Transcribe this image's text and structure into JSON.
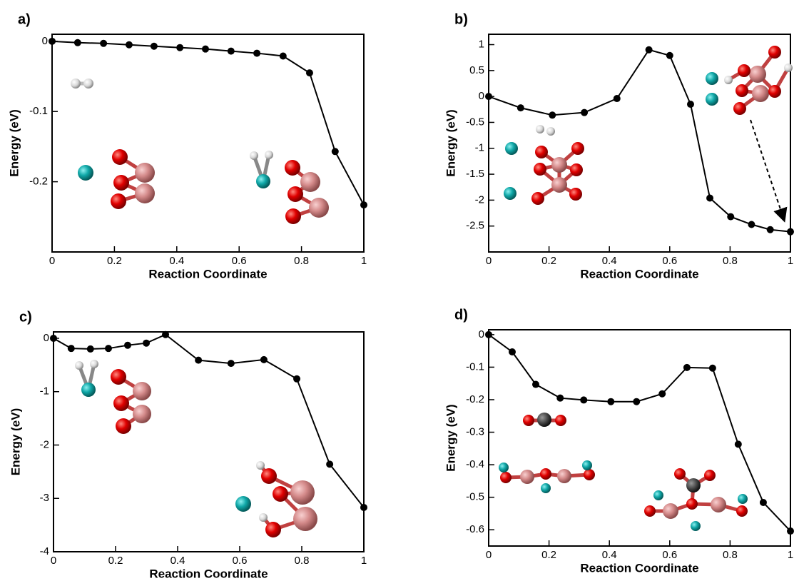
{
  "chart_data": [
    {
      "type": "line",
      "panel_label": "a)",
      "xlabel": "Reaction Coordinate",
      "ylabel": "Energy (eV)",
      "color": "#000000",
      "x": [
        0,
        0.082,
        0.165,
        0.247,
        0.327,
        0.41,
        0.492,
        0.574,
        0.657,
        0.741,
        0.826,
        0.908,
        1
      ],
      "values": [
        0,
        -0.002,
        -0.003,
        -0.005,
        -0.007,
        -0.009,
        -0.011,
        -0.014,
        -0.017,
        -0.021,
        -0.045,
        -0.157,
        -0.233
      ],
      "xlim": [
        0,
        1
      ],
      "xticks": [
        0,
        0.2,
        0.4,
        0.6,
        0.8,
        1
      ],
      "ylim": [
        -0.3,
        0.01
      ],
      "yticks": [
        0,
        -0.1,
        -0.2
      ]
    },
    {
      "type": "line",
      "panel_label": "b)",
      "xlabel": "Reaction Coordinate",
      "ylabel": "Energy (eV)",
      "color": "#000000",
      "x": [
        0,
        0.106,
        0.211,
        0.317,
        0.425,
        0.531,
        0.6,
        0.669,
        0.733,
        0.802,
        0.871,
        0.933,
        1
      ],
      "values": [
        0,
        -0.22,
        -0.36,
        -0.31,
        -0.04,
        0.9,
        0.79,
        -0.15,
        -1.96,
        -2.32,
        -2.47,
        -2.57,
        -2.61
      ],
      "xlim": [
        0,
        1
      ],
      "xticks": [
        0,
        0.2,
        0.4,
        0.6,
        0.8,
        1
      ],
      "ylim": [
        -3,
        1.2
      ],
      "yticks": [
        1,
        0.5,
        0,
        -0.5,
        -1,
        -1.5,
        -2,
        -2.5
      ]
    },
    {
      "type": "line",
      "panel_label": "c)",
      "xlabel": "Reaction Coordinate",
      "ylabel": "Energy (eV)",
      "color": "#000000",
      "x": [
        0,
        0.057,
        0.119,
        0.177,
        0.239,
        0.299,
        0.361,
        0.467,
        0.572,
        0.678,
        0.784,
        0.89,
        1
      ],
      "values": [
        0,
        -0.19,
        -0.2,
        -0.19,
        -0.13,
        -0.09,
        0.07,
        -0.41,
        -0.47,
        -0.4,
        -0.76,
        -2.36,
        -3.17
      ],
      "xlim": [
        0,
        1
      ],
      "xticks": [
        0,
        0.2,
        0.4,
        0.6,
        0.8,
        1
      ],
      "ylim": [
        -4,
        0.12
      ],
      "yticks": [
        0,
        -1,
        -2,
        -3,
        -4
      ]
    },
    {
      "type": "line",
      "panel_label": "d)",
      "xlabel": "Reaction Coordinate",
      "ylabel": "Energy (eV)",
      "color": "#000000",
      "x": [
        0,
        0.078,
        0.156,
        0.237,
        0.315,
        0.405,
        0.49,
        0.575,
        0.657,
        0.742,
        0.827,
        0.91,
        1
      ],
      "values": [
        0,
        -0.053,
        -0.153,
        -0.195,
        -0.201,
        -0.206,
        -0.206,
        -0.182,
        -0.101,
        -0.103,
        -0.337,
        -0.516,
        -0.604
      ],
      "xlim": [
        0,
        1
      ],
      "xticks": [
        0,
        0.2,
        0.4,
        0.6,
        0.8,
        1
      ],
      "ylim": [
        -0.65,
        0.015
      ],
      "yticks": [
        0,
        -0.1,
        -0.2,
        -0.3,
        -0.4,
        -0.5,
        -0.6
      ]
    }
  ]
}
